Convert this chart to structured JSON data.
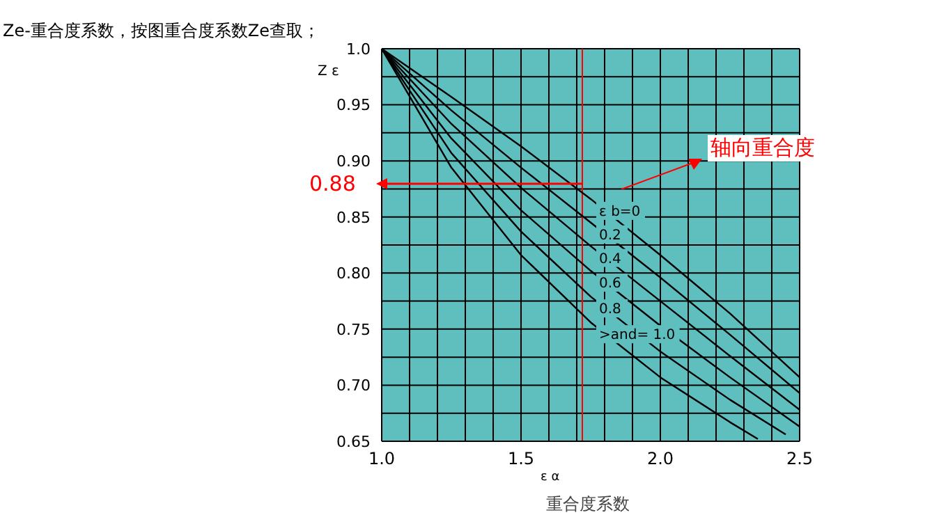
{
  "chart_data": {
    "type": "line",
    "title": "Ze-重合度系数，按图重合度系数Ze查取；",
    "xlabel": "ε α",
    "ylabel": "Z ε",
    "annotations": [
      {
        "text": "0.88",
        "x": 1.72,
        "y": 0.88
      },
      "轴向重合度",
      "重合度系数"
    ],
    "xlim": [
      1,
      2.5
    ],
    "xticks": [
      {
        "value": 1,
        "label": "1.0"
      },
      {
        "value": 1.1,
        "label": null
      },
      {
        "value": 1.2,
        "label": null
      },
      {
        "value": 1.3,
        "label": null
      },
      {
        "value": 1.4,
        "label": null
      },
      {
        "value": 1.5,
        "label": "1.5"
      },
      {
        "value": 1.6,
        "label": null
      },
      {
        "value": 1.7,
        "label": null
      },
      {
        "value": 1.8,
        "label": null
      },
      {
        "value": 1.9,
        "label": null
      },
      {
        "value": 2,
        "label": "2.0"
      },
      {
        "value": 2.1,
        "label": null
      },
      {
        "value": 2.2,
        "label": null
      },
      {
        "value": 2.3,
        "label": null
      },
      {
        "value": 2.4,
        "label": null
      },
      {
        "value": 2.5,
        "label": "2.5"
      }
    ],
    "ylim": [
      0.65,
      1
    ],
    "yticks": [
      {
        "value": 0.65,
        "label": "0.65"
      },
      {
        "value": 0.675,
        "label": null
      },
      {
        "value": 0.7,
        "label": "0.70"
      },
      {
        "value": 0.725,
        "label": null
      },
      {
        "value": 0.75,
        "label": "0.75"
      },
      {
        "value": 0.775,
        "label": null
      },
      {
        "value": 0.8,
        "label": "0.80"
      },
      {
        "value": 0.825,
        "label": null
      },
      {
        "value": 0.85,
        "label": "0.85"
      },
      {
        "value": 0.875,
        "label": null
      },
      {
        "value": 0.9,
        "label": "0.90"
      },
      {
        "value": 0.925,
        "label": null
      },
      {
        "value": 0.95,
        "label": "0.95"
      },
      {
        "value": 0.975,
        "label": null
      },
      {
        "value": 1,
        "label": "1.0"
      }
    ],
    "grid": true,
    "marker": "none",
    "line_style": "solid",
    "ref_lines": [
      {
        "axis": "x",
        "value": 1.72,
        "color": "#ff0000"
      }
    ],
    "series": [
      {
        "name": "ε b=0",
        "color": "#000000",
        "x": [
          1,
          1.25,
          1.5,
          1.75,
          2,
          2.25,
          2.5
        ],
        "values": [
          1,
          0.957,
          0.913,
          0.866,
          0.816,
          0.764,
          0.707
        ]
      },
      {
        "name": "0.2",
        "color": "#000000",
        "x": [
          1,
          1.25,
          1.5,
          1.75,
          2,
          2.25,
          2.5
        ],
        "values": [
          1,
          0.945,
          0.894,
          0.845,
          0.796,
          0.745,
          0.693
        ]
      },
      {
        "name": "0.4",
        "color": "#000000",
        "x": [
          1,
          1.25,
          1.5,
          1.75,
          2,
          2.25,
          2.5
        ],
        "values": [
          1,
          0.933,
          0.876,
          0.824,
          0.775,
          0.726,
          0.678
        ]
      },
      {
        "name": "0.6",
        "color": "#000000",
        "x": [
          1,
          1.25,
          1.5,
          1.75,
          2,
          2.25,
          2.5
        ],
        "values": [
          1,
          0.92,
          0.856,
          0.802,
          0.753,
          0.707,
          0.663
        ]
      },
      {
        "name": "0.8",
        "color": "#000000",
        "x": [
          1,
          1.25,
          1.5,
          1.75,
          2,
          2.25,
          2.45
        ],
        "values": [
          1,
          0.907,
          0.837,
          0.779,
          0.73,
          0.687,
          0.656
        ]
      },
      {
        "name": ">and= 1.0",
        "color": "#000000",
        "x": [
          1,
          1.25,
          1.5,
          1.75,
          2,
          2.25,
          2.35
        ],
        "values": [
          1,
          0.894,
          0.816,
          0.756,
          0.707,
          0.667,
          0.652
        ]
      }
    ]
  }
}
